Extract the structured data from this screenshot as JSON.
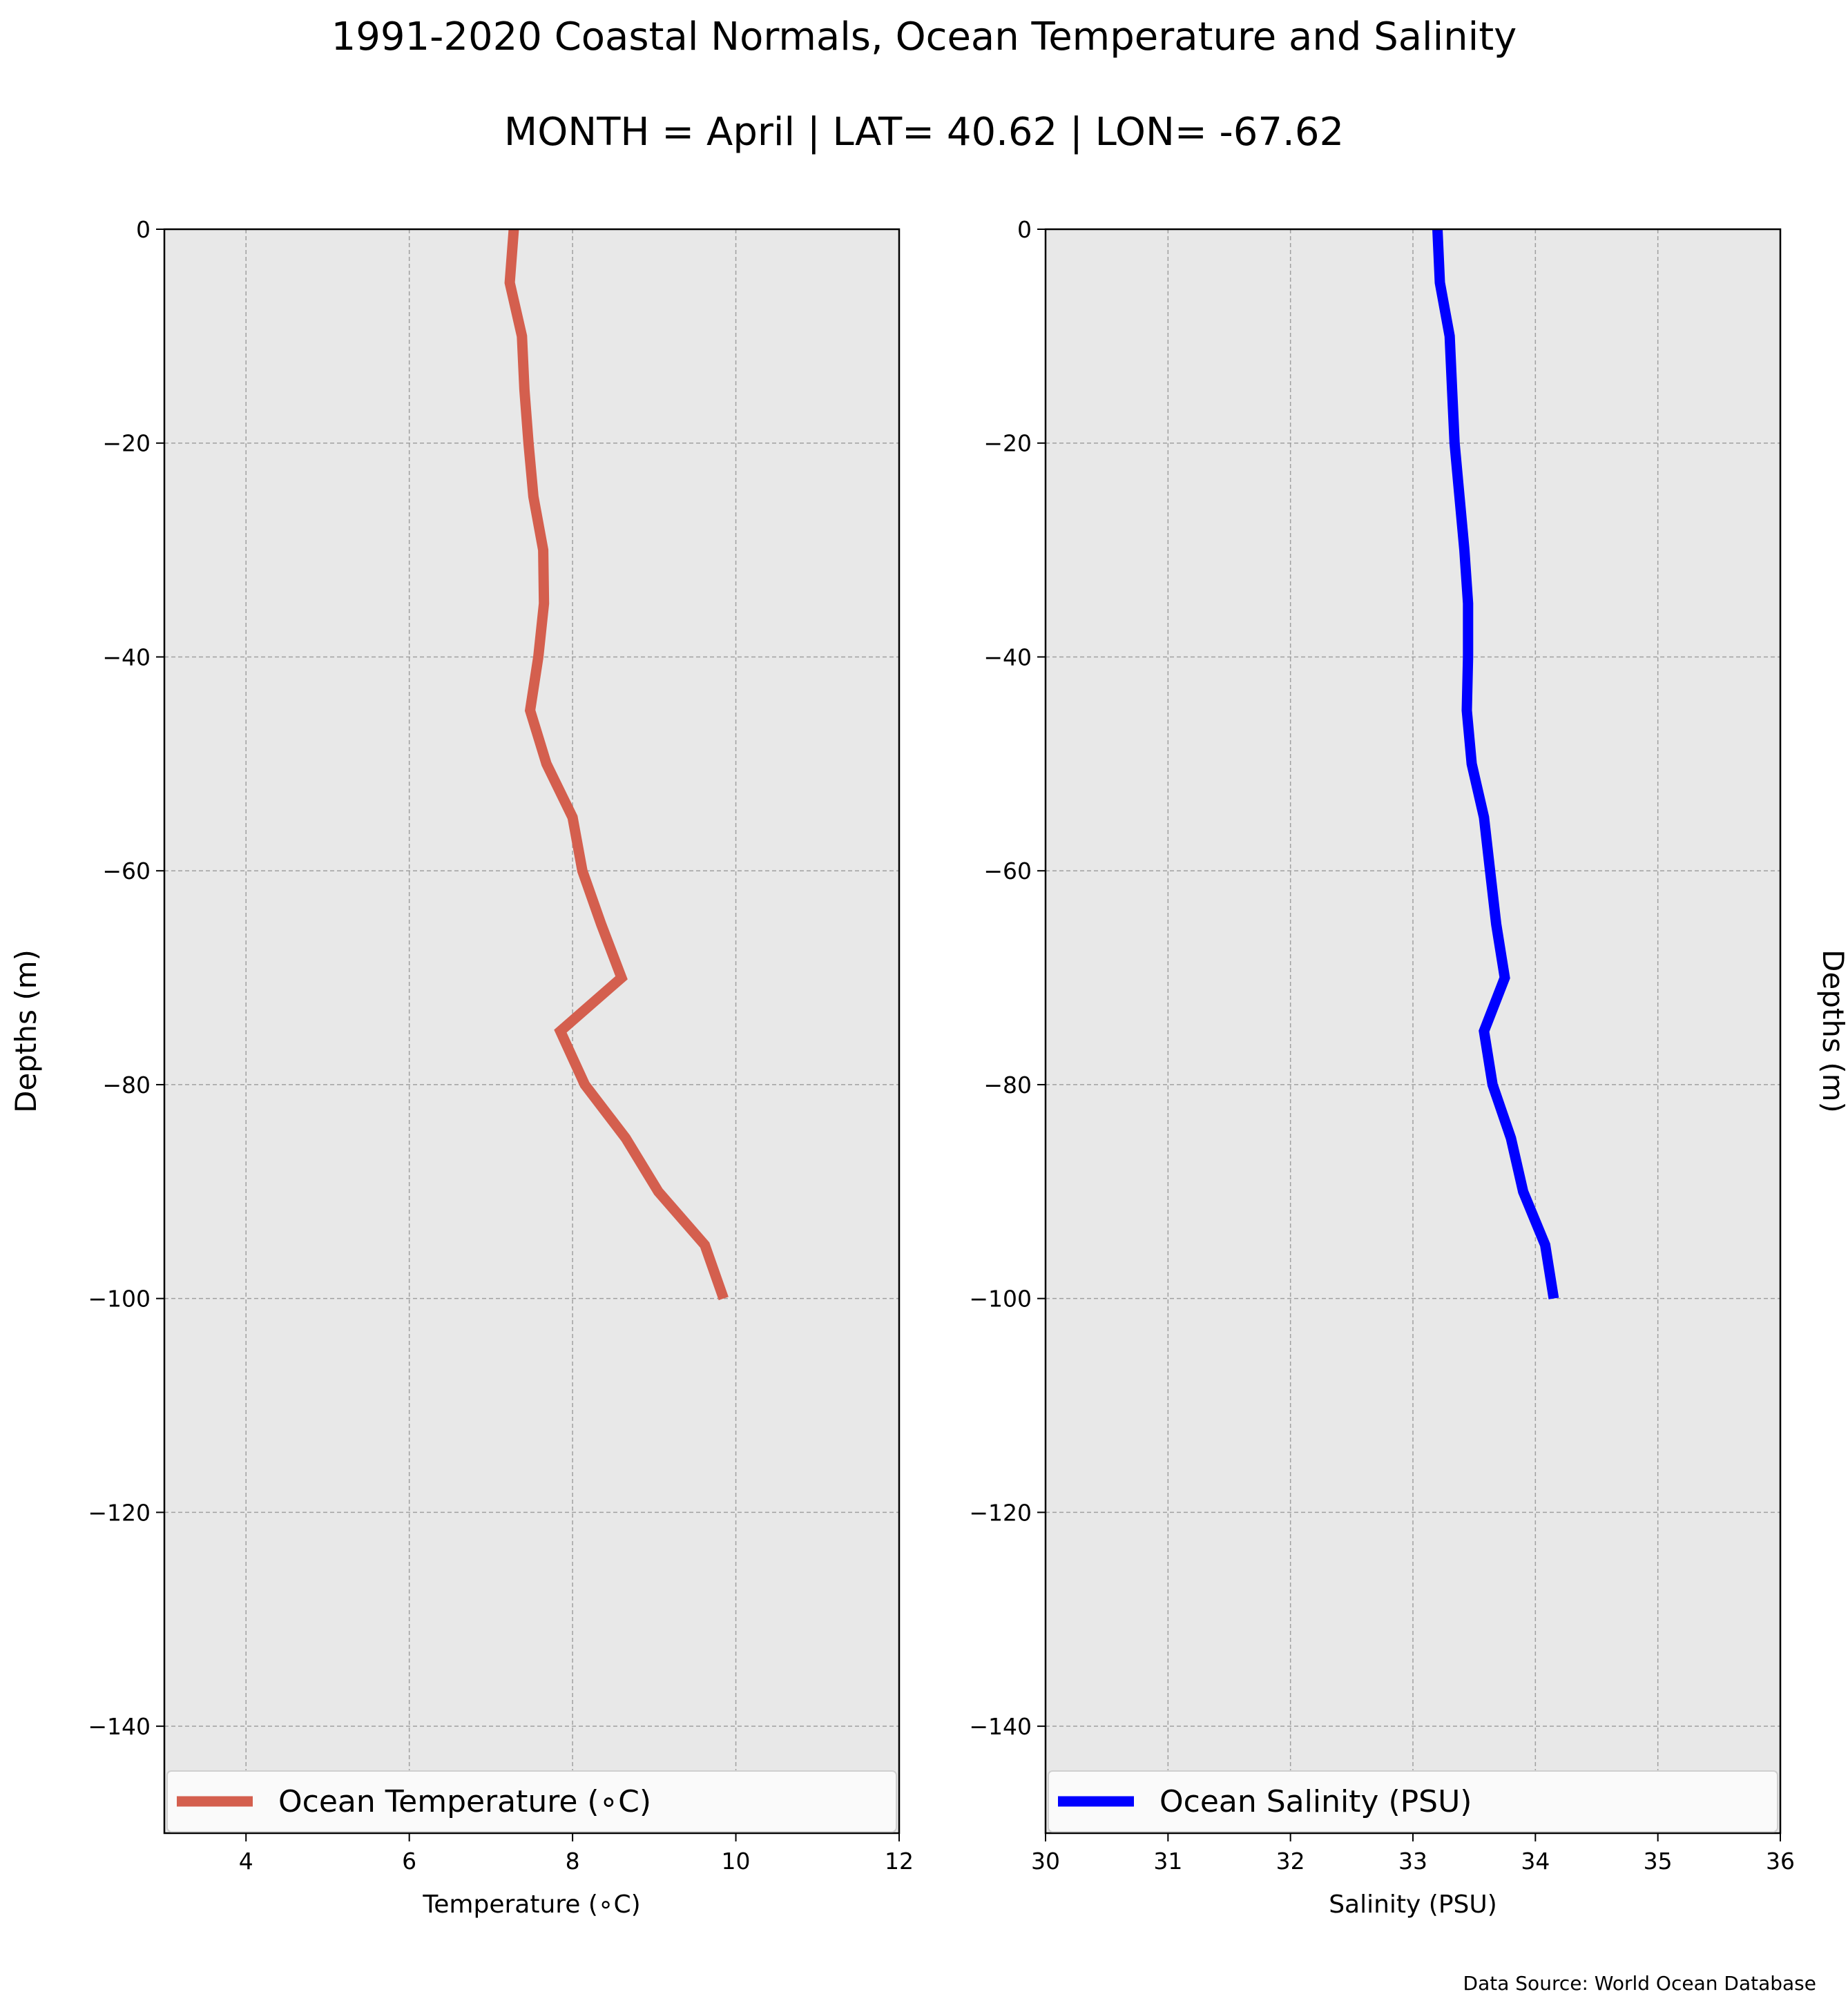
{
  "figure": {
    "title": "1991-2020 Coastal Normals, Ocean Temperature and Salinity",
    "subtitle": "MONTH = April | LAT= 40.62 | LON= -67.62",
    "source_note": "Data Source: World Ocean Database"
  },
  "chart_data": [
    {
      "type": "line",
      "xlabel": "Temperature (∘C)",
      "ylabel": "Depths (m)",
      "xlim": [
        3,
        12
      ],
      "ylim": [
        -150,
        0
      ],
      "xticks": [
        4,
        6,
        8,
        10,
        12
      ],
      "yticks": [
        0,
        -20,
        -40,
        -60,
        -80,
        -100,
        -120,
        -140
      ],
      "grid": true,
      "legend_position": "bottom",
      "series": [
        {
          "name": "Ocean Temperature (∘C)",
          "color": "#d45f4e",
          "x": [
            7.28,
            7.23,
            7.38,
            7.41,
            7.46,
            7.52,
            7.64,
            7.65,
            7.58,
            7.48,
            7.68,
            8.0,
            8.12,
            8.35,
            8.6,
            7.85,
            8.15,
            8.65,
            9.05,
            9.62,
            9.85
          ],
          "y": [
            0,
            -5,
            -10,
            -15,
            -20,
            -25,
            -30,
            -35,
            -40,
            -45,
            -50,
            -55,
            -60,
            -65,
            -70,
            -75,
            -80,
            -85,
            -90,
            -95,
            -100
          ]
        }
      ]
    },
    {
      "type": "line",
      "xlabel": "Salinity (PSU)",
      "ylabel": "Depths (m)",
      "xlim": [
        30,
        36
      ],
      "ylim": [
        -150,
        0
      ],
      "xticks": [
        30,
        31,
        32,
        33,
        34,
        35,
        36
      ],
      "yticks": [
        0,
        -20,
        -40,
        -60,
        -80,
        -100,
        -120,
        -140
      ],
      "grid": true,
      "legend_position": "bottom",
      "series": [
        {
          "name": "Ocean Salinity (PSU)",
          "color": "#0000ff",
          "x": [
            33.2,
            33.22,
            33.3,
            33.32,
            33.34,
            33.38,
            33.42,
            33.45,
            33.45,
            33.44,
            33.48,
            33.58,
            33.63,
            33.68,
            33.75,
            33.58,
            33.65,
            33.8,
            33.9,
            34.08,
            34.15
          ],
          "y": [
            0,
            -5,
            -10,
            -15,
            -20,
            -25,
            -30,
            -35,
            -40,
            -45,
            -50,
            -55,
            -60,
            -65,
            -70,
            -75,
            -80,
            -85,
            -90,
            -95,
            -100
          ]
        }
      ]
    }
  ]
}
